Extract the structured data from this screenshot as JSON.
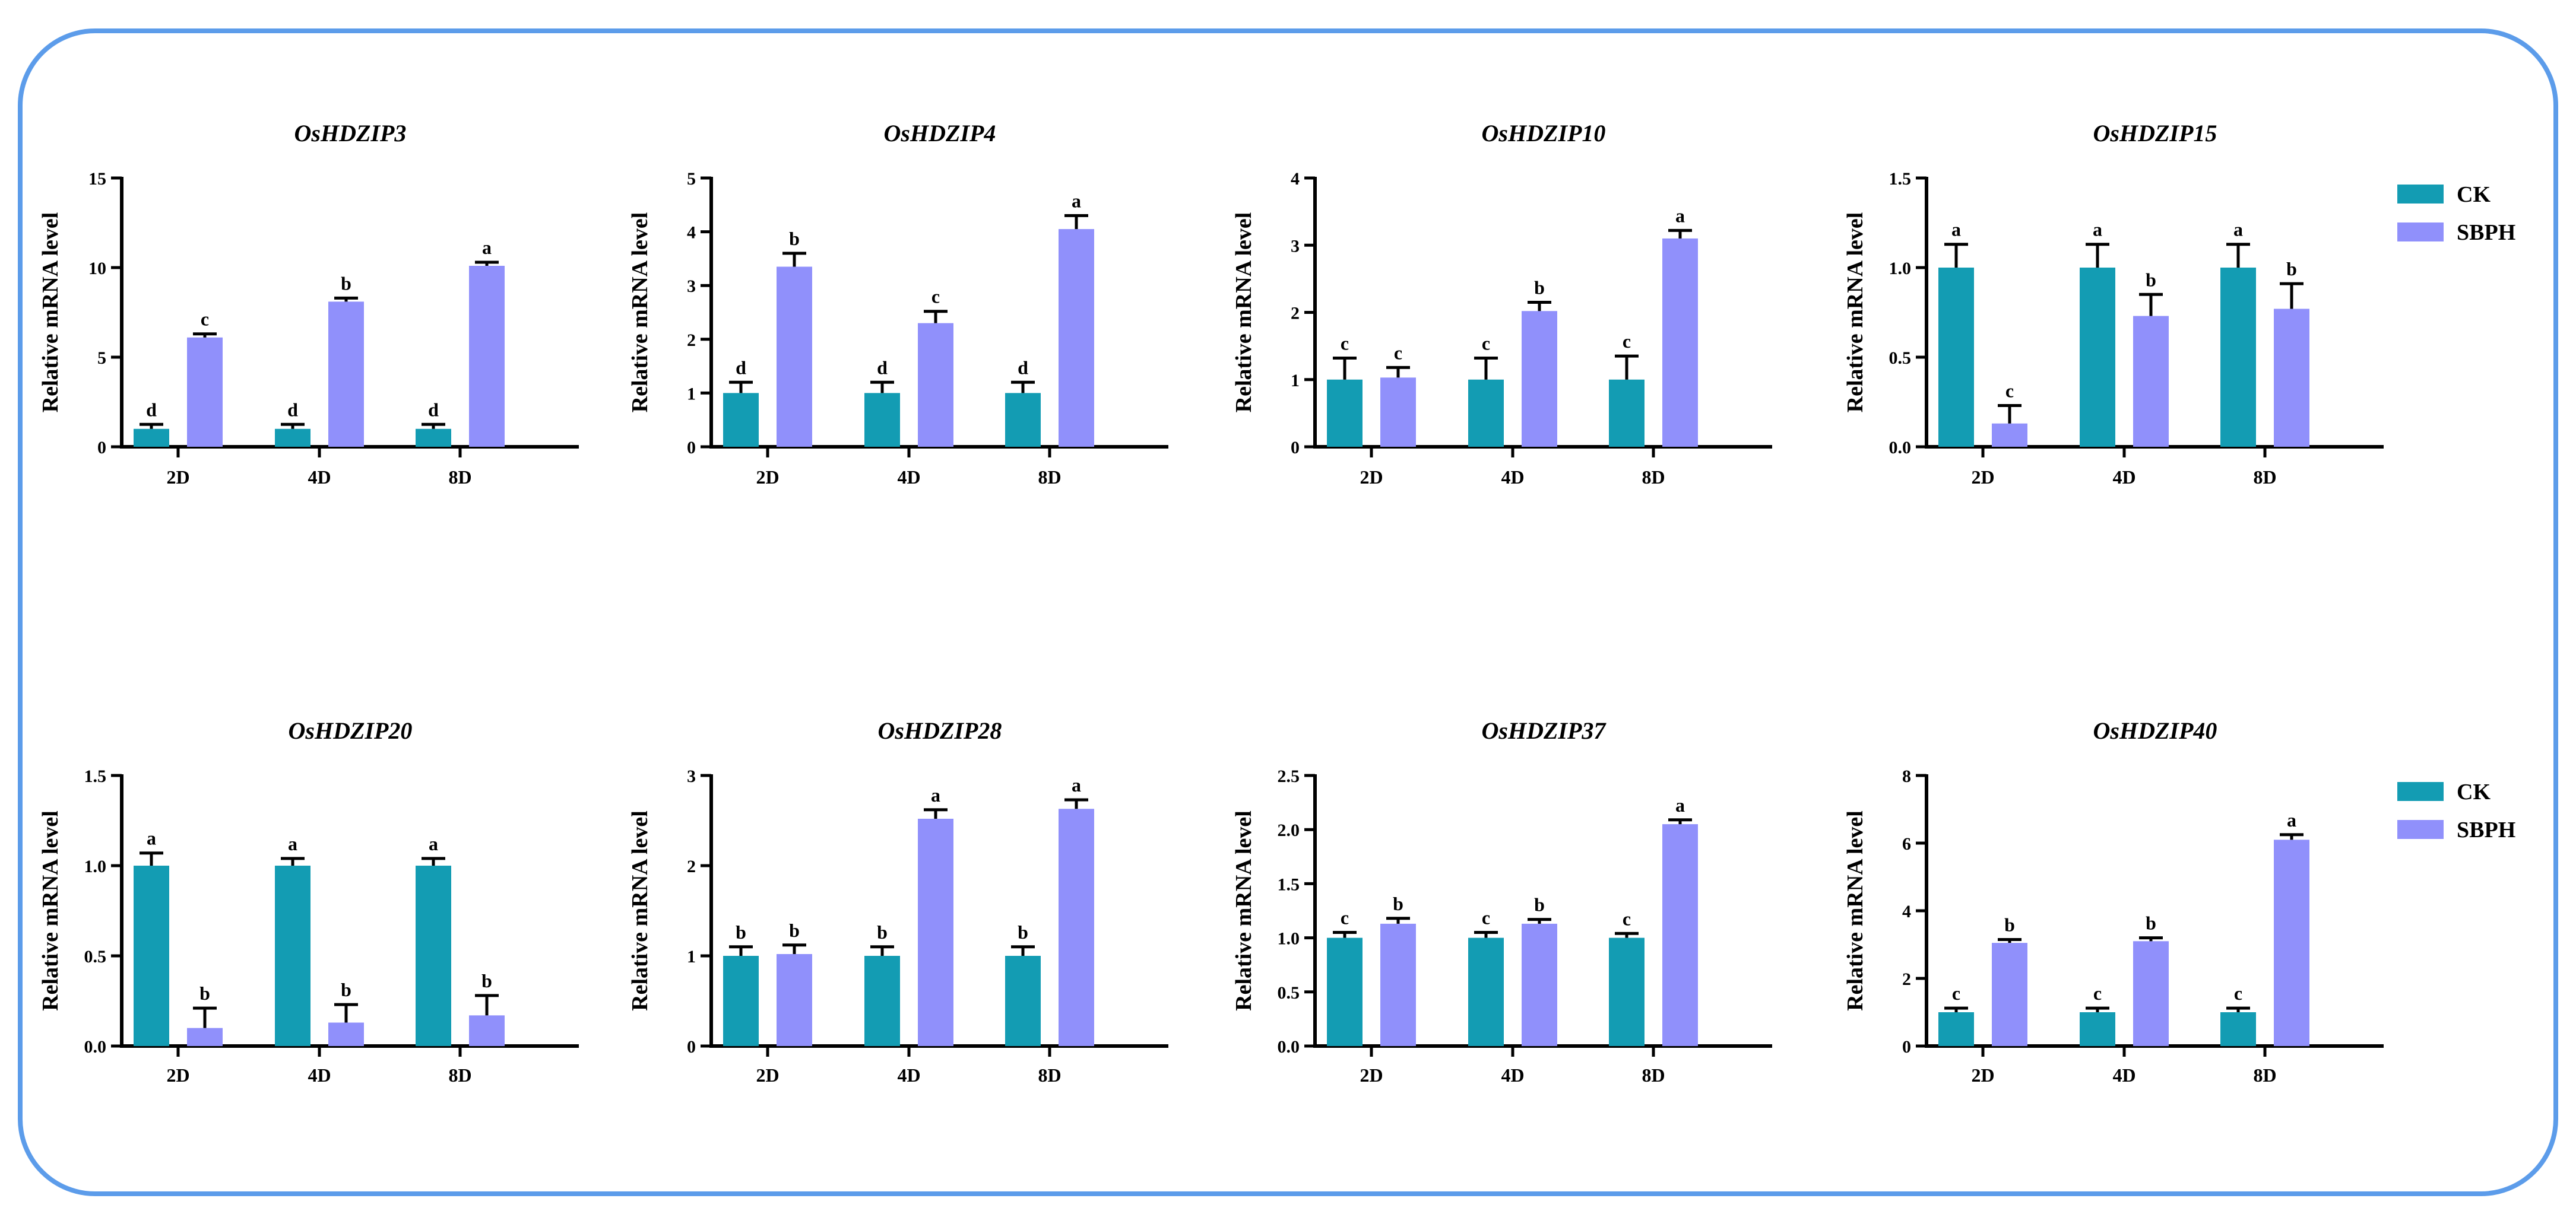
{
  "colors": {
    "ck": "#139cb3",
    "sbph": "#9090fb",
    "frame": "#5c9cea",
    "axis": "#000000"
  },
  "legends": [
    {
      "row": 0,
      "entries": [
        {
          "label": "CK",
          "color_key": "ck"
        },
        {
          "label": "SBPH",
          "color_key": "sbph"
        }
      ]
    },
    {
      "row": 1,
      "entries": [
        {
          "label": "CK",
          "color_key": "ck"
        },
        {
          "label": "SBPH",
          "color_key": "sbph"
        }
      ]
    }
  ],
  "chart_data": [
    {
      "type": "bar",
      "title": "OsHDZIP3",
      "ylabel": "Relative mRNA level",
      "categories": [
        "2D",
        "4D",
        "8D"
      ],
      "ylim": [
        0,
        15
      ],
      "yticks": [
        0,
        5,
        10,
        15
      ],
      "ytick_labels": [
        "0",
        "5",
        "10",
        "15"
      ],
      "series": [
        {
          "name": "CK",
          "values": [
            1.0,
            1.0,
            1.0
          ],
          "errors": [
            0.25,
            0.25,
            0.25
          ],
          "letters": [
            "d",
            "d",
            "d"
          ]
        },
        {
          "name": "SBPH",
          "values": [
            6.1,
            8.1,
            10.1
          ],
          "errors": [
            0.2,
            0.2,
            0.2
          ],
          "letters": [
            "c",
            "b",
            "a"
          ]
        }
      ]
    },
    {
      "type": "bar",
      "title": "OsHDZIP4",
      "ylabel": "Relative mRNA level",
      "categories": [
        "2D",
        "4D",
        "8D"
      ],
      "ylim": [
        0,
        5
      ],
      "yticks": [
        0,
        1,
        2,
        3,
        4,
        5
      ],
      "ytick_labels": [
        "0",
        "1",
        "2",
        "3",
        "4",
        "5"
      ],
      "series": [
        {
          "name": "CK",
          "values": [
            1.0,
            1.0,
            1.0
          ],
          "errors": [
            0.2,
            0.2,
            0.2
          ],
          "letters": [
            "d",
            "d",
            "d"
          ]
        },
        {
          "name": "SBPH",
          "values": [
            3.35,
            2.3,
            4.05
          ],
          "errors": [
            0.25,
            0.22,
            0.25
          ],
          "letters": [
            "b",
            "c",
            "a"
          ]
        }
      ]
    },
    {
      "type": "bar",
      "title": "OsHDZIP10",
      "ylabel": "Relative mRNA level",
      "categories": [
        "2D",
        "4D",
        "8D"
      ],
      "ylim": [
        0,
        4
      ],
      "yticks": [
        0,
        1,
        2,
        3,
        4
      ],
      "ytick_labels": [
        "0",
        "1",
        "2",
        "3",
        "4"
      ],
      "series": [
        {
          "name": "CK",
          "values": [
            1.0,
            1.0,
            1.0
          ],
          "errors": [
            0.32,
            0.32,
            0.35
          ],
          "letters": [
            "c",
            "c",
            "c"
          ]
        },
        {
          "name": "SBPH",
          "values": [
            1.03,
            2.02,
            3.1
          ],
          "errors": [
            0.15,
            0.13,
            0.12
          ],
          "letters": [
            "c",
            "b",
            "a"
          ]
        }
      ]
    },
    {
      "type": "bar",
      "title": "OsHDZIP15",
      "ylabel": "Relative mRNA level",
      "categories": [
        "2D",
        "4D",
        "8D"
      ],
      "ylim": [
        0,
        1.5
      ],
      "yticks": [
        0,
        0.5,
        1.0,
        1.5
      ],
      "ytick_labels": [
        "0.0",
        "0.5",
        "1.0",
        "1.5"
      ],
      "series": [
        {
          "name": "CK",
          "values": [
            1.0,
            1.0,
            1.0
          ],
          "errors": [
            0.13,
            0.13,
            0.13
          ],
          "letters": [
            "a",
            "a",
            "a"
          ]
        },
        {
          "name": "SBPH",
          "values": [
            0.13,
            0.73,
            0.77
          ],
          "errors": [
            0.1,
            0.12,
            0.14
          ],
          "letters": [
            "c",
            "b",
            "b"
          ]
        }
      ]
    },
    {
      "type": "bar",
      "title": "OsHDZIP20",
      "ylabel": "Relative mRNA level",
      "categories": [
        "2D",
        "4D",
        "8D"
      ],
      "ylim": [
        0,
        1.5
      ],
      "yticks": [
        0,
        0.5,
        1.0,
        1.5
      ],
      "ytick_labels": [
        "0.0",
        "0.5",
        "1.0",
        "1.5"
      ],
      "series": [
        {
          "name": "CK",
          "values": [
            1.0,
            1.0,
            1.0
          ],
          "errors": [
            0.07,
            0.04,
            0.04
          ],
          "letters": [
            "a",
            "a",
            "a"
          ]
        },
        {
          "name": "SBPH",
          "values": [
            0.1,
            0.13,
            0.17
          ],
          "errors": [
            0.11,
            0.1,
            0.11
          ],
          "letters": [
            "b",
            "b",
            "b"
          ]
        }
      ]
    },
    {
      "type": "bar",
      "title": "OsHDZIP28",
      "ylabel": "Relative mRNA level",
      "categories": [
        "2D",
        "4D",
        "8D"
      ],
      "ylim": [
        0,
        3
      ],
      "yticks": [
        0,
        1,
        2,
        3
      ],
      "ytick_labels": [
        "0",
        "1",
        "2",
        "3"
      ],
      "series": [
        {
          "name": "CK",
          "values": [
            1.0,
            1.0,
            1.0
          ],
          "errors": [
            0.1,
            0.1,
            0.1
          ],
          "letters": [
            "b",
            "b",
            "b"
          ]
        },
        {
          "name": "SBPH",
          "values": [
            1.02,
            2.52,
            2.63
          ],
          "errors": [
            0.1,
            0.1,
            0.1
          ],
          "letters": [
            "b",
            "a",
            "a"
          ]
        }
      ]
    },
    {
      "type": "bar",
      "title": "OsHDZIP37",
      "ylabel": "Relative mRNA level",
      "categories": [
        "2D",
        "4D",
        "8D"
      ],
      "ylim": [
        0,
        2.5
      ],
      "yticks": [
        0,
        0.5,
        1.0,
        1.5,
        2.0,
        2.5
      ],
      "ytick_labels": [
        "0.0",
        "0.5",
        "1.0",
        "1.5",
        "2.0",
        "2.5"
      ],
      "series": [
        {
          "name": "CK",
          "values": [
            1.0,
            1.0,
            1.0
          ],
          "errors": [
            0.05,
            0.05,
            0.04
          ],
          "letters": [
            "c",
            "c",
            "c"
          ]
        },
        {
          "name": "SBPH",
          "values": [
            1.13,
            1.13,
            2.05
          ],
          "errors": [
            0.05,
            0.04,
            0.04
          ],
          "letters": [
            "b",
            "b",
            "a"
          ]
        }
      ]
    },
    {
      "type": "bar",
      "title": "OsHDZIP40",
      "ylabel": "Relative mRNA level",
      "categories": [
        "2D",
        "4D",
        "8D"
      ],
      "ylim": [
        0,
        8
      ],
      "yticks": [
        0,
        2,
        4,
        6,
        8
      ],
      "ytick_labels": [
        "0",
        "2",
        "4",
        "6",
        "8"
      ],
      "series": [
        {
          "name": "CK",
          "values": [
            1.0,
            1.0,
            1.0
          ],
          "errors": [
            0.12,
            0.12,
            0.12
          ],
          "letters": [
            "c",
            "c",
            "c"
          ]
        },
        {
          "name": "SBPH",
          "values": [
            3.05,
            3.1,
            6.1
          ],
          "errors": [
            0.1,
            0.1,
            0.15
          ],
          "letters": [
            "b",
            "b",
            "a"
          ]
        }
      ]
    }
  ]
}
